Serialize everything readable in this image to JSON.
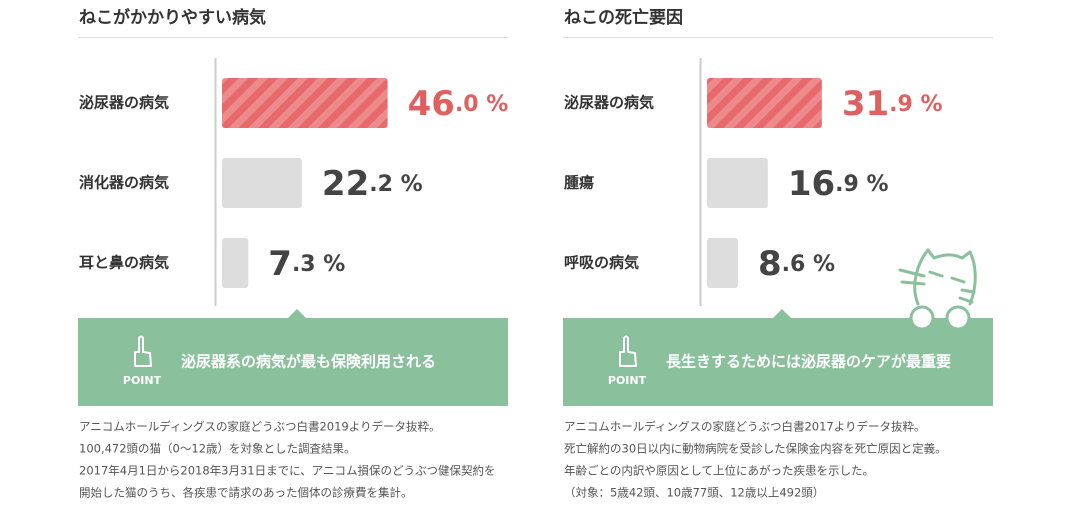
{
  "chart_data": [
    {
      "type": "bar",
      "title": "ねこがかかりやすい病気",
      "categories": [
        "泌尿器の病気",
        "消化器の病気",
        "耳と鼻の病気"
      ],
      "values": [
        46.0,
        22.2,
        7.3
      ],
      "value_labels": [
        "46.0 %",
        "22.2 %",
        "7.3 %"
      ],
      "colors": [
        "#e8696b",
        "#dddddd",
        "#dddddd"
      ],
      "point_label": "POINT",
      "point_text": "泌尿器系の病気が最も保険利用される",
      "notes": [
        "アニコムホールディングスの家庭どうぶつ白書2019よりデータ抜粋。",
        "100,472頭の猫（0〜12歳）を対象とした調査結果。",
        "2017年4月1日から2018年3月31日までに、アニコム損保のどうぶつ健保契約を",
        "開始した猫のうち、各疾患で請求のあった個体の診療費を集計。"
      ]
    },
    {
      "type": "bar",
      "title": "ねこの死亡要因",
      "categories": [
        "泌尿器の病気",
        "腫瘍",
        "呼吸の病気"
      ],
      "values": [
        31.9,
        16.9,
        8.6
      ],
      "value_labels": [
        "31.9 %",
        "16.9 %",
        "8.6 %"
      ],
      "colors": [
        "#e8696b",
        "#dddddd",
        "#dddddd"
      ],
      "point_label": "POINT",
      "point_text": "長生きするためには泌尿器のケアが最重要",
      "notes": [
        "アニコムホールディングスの家庭どうぶつ白書2017よりデータ抜粋。",
        "死亡解約の30日以内に動物病院を受診した保険金内容を死亡原因と定義。",
        "年齢ごとの内訳や原因として上位にあがった疾患を示した。",
        "（対象：5歳42頭、10歳77頭、12歳以上492頭）"
      ]
    }
  ]
}
